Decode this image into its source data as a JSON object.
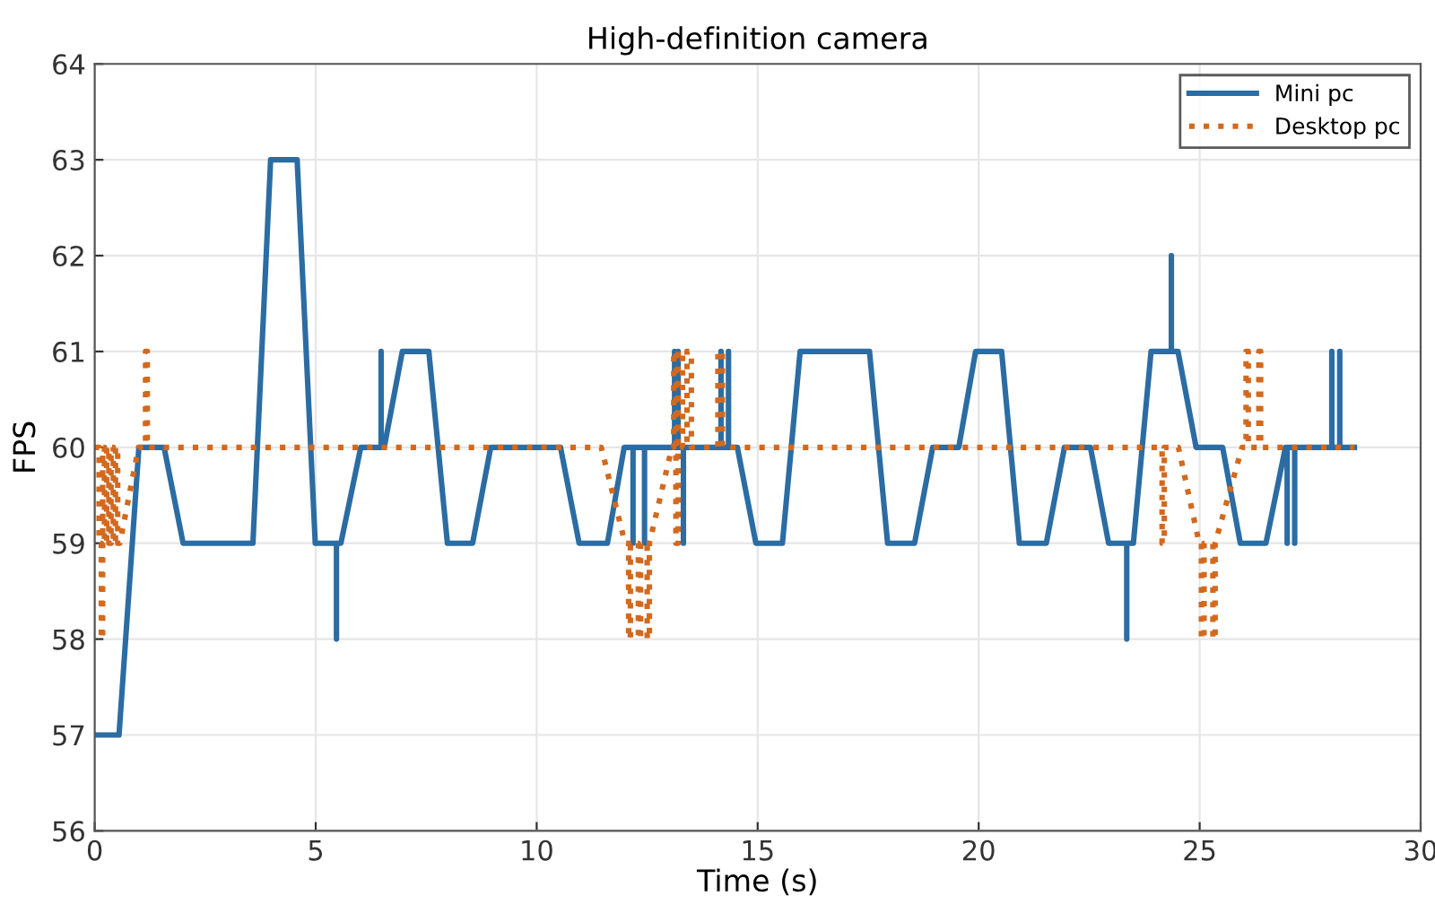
{
  "chart_data": {
    "type": "line",
    "title": "High-definition camera",
    "xlabel": "Time (s)",
    "ylabel": "FPS",
    "xlim": [
      0,
      30
    ],
    "xticks": [
      0,
      5,
      10,
      15,
      20,
      25,
      30
    ],
    "ylim": [
      56,
      64
    ],
    "yticks": [
      56,
      57,
      58,
      59,
      60,
      61,
      62,
      63,
      64
    ],
    "grid": true,
    "legend": "top right",
    "marker": "none",
    "series": [
      {
        "name": "Mini pc",
        "color": "#2b6ca3",
        "line_style": "solid",
        "x": [
          0,
          0.55,
          1.0,
          1.57,
          2.0,
          3.58,
          3.98,
          4.58,
          4.99,
          5.47,
          5.47,
          5.47,
          5.57,
          6.02,
          6.48,
          6.48,
          6.48,
          6.55,
          6.96,
          7.56,
          7.98,
          8.55,
          8.96,
          10.54,
          10.96,
          11.6,
          11.98,
          12.18,
          12.18,
          12.18,
          12.44,
          12.44,
          12.44,
          13.12,
          13.12,
          13.12,
          13.2,
          13.2,
          13.2,
          13.32,
          13.32,
          13.32,
          14.17,
          14.17,
          14.17,
          14.34,
          14.34,
          14.34,
          14.54,
          14.96,
          15.56,
          15.96,
          17.53,
          17.94,
          18.55,
          18.96,
          19.55,
          19.93,
          20.52,
          20.92,
          21.53,
          21.94,
          22.53,
          22.94,
          23.35,
          23.35,
          23.35,
          23.5,
          23.9,
          24.36,
          24.36,
          24.36,
          24.51,
          24.92,
          25.52,
          25.92,
          26.5,
          26.94,
          26.98,
          26.98,
          26.98,
          27.15,
          27.15,
          27.15,
          27.99,
          27.99,
          27.99,
          28.17,
          28.17,
          28.17,
          28.5
        ],
        "values": [
          57,
          57,
          60,
          60,
          59,
          59,
          63,
          63,
          59,
          59,
          58,
          59,
          59,
          60,
          60,
          61,
          60,
          60,
          61,
          61,
          59,
          59,
          60,
          60,
          59,
          59,
          60,
          60,
          59,
          60,
          60,
          59,
          60,
          60,
          61,
          60,
          60,
          61,
          60,
          60,
          59,
          60,
          60,
          61,
          60,
          60,
          61,
          60,
          60,
          59,
          59,
          61,
          61,
          59,
          59,
          60,
          60,
          61,
          61,
          59,
          59,
          60,
          60,
          59,
          59,
          58,
          59,
          59,
          61,
          61,
          62,
          61,
          61,
          60,
          60,
          59,
          59,
          60,
          60,
          59,
          60,
          60,
          59,
          60,
          60,
          61,
          60,
          60,
          61,
          60,
          60
        ]
      },
      {
        "name": "Desktop pc",
        "color": "#d2691e",
        "line_style": "dotted",
        "x": [
          0,
          0.1,
          0.1,
          0.15,
          0.15,
          0.18,
          0.18,
          0.22,
          0.22,
          0.27,
          0.27,
          0.32,
          0.32,
          0.37,
          0.37,
          0.42,
          0.42,
          0.47,
          0.47,
          0.52,
          0.52,
          0.57,
          0.99,
          1.15,
          1.15,
          1.19,
          1.19,
          11.46,
          12.0,
          12.08,
          12.08,
          12.12,
          12.12,
          12.3,
          12.3,
          12.35,
          12.35,
          12.5,
          12.5,
          12.55,
          12.55,
          13.06,
          13.1,
          13.1,
          13.15,
          13.15,
          13.2,
          13.2,
          13.3,
          13.3,
          13.4,
          13.4,
          13.5,
          13.5,
          14.1,
          14.1,
          14.2,
          14.2,
          24.15,
          24.15,
          24.2,
          24.2,
          24.52,
          24.99,
          25.04,
          25.04,
          25.1,
          25.1,
          25.3,
          25.3,
          25.35,
          25.35,
          25.96,
          26.05,
          26.05,
          26.1,
          26.1,
          26.34,
          26.34,
          26.38,
          26.38,
          28.5
        ],
        "values": [
          60,
          60,
          59,
          59,
          58,
          58,
          60,
          60,
          59,
          59,
          60,
          60,
          59,
          59,
          60,
          60,
          59,
          59,
          60,
          60,
          59,
          59,
          60,
          60,
          61,
          61,
          60,
          60,
          59,
          59,
          58,
          58,
          59,
          59,
          58,
          58,
          59,
          59,
          58,
          58,
          59,
          60,
          60,
          61,
          61,
          59,
          59,
          61,
          61,
          60,
          60,
          61,
          61,
          60,
          60,
          61,
          61,
          60,
          60,
          59,
          59,
          60,
          60,
          59,
          59,
          58,
          58,
          59,
          59,
          58,
          58,
          59,
          60,
          60,
          61,
          61,
          60,
          60,
          61,
          61,
          60,
          60
        ]
      }
    ]
  }
}
